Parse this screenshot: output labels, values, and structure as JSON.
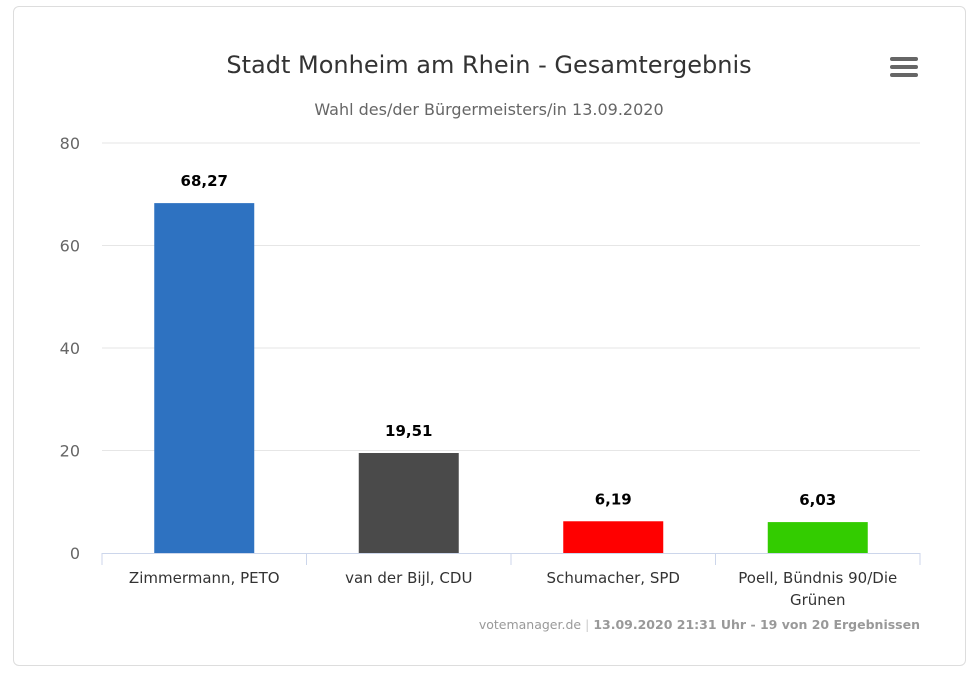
{
  "chart_data": {
    "type": "bar",
    "title": "Stadt Monheim am Rhein - Gesamtergebnis",
    "subtitle": "Wahl des/der Bürgermeisters/in 13.09.2020",
    "categories": [
      "Zimmermann, PETO",
      "van der Bijl, CDU",
      "Schumacher, SPD",
      "Poell, Bündnis 90/Die Grünen"
    ],
    "category_lines": [
      [
        "Zimmermann, PETO"
      ],
      [
        "van der Bijl, CDU"
      ],
      [
        "Schumacher, SPD"
      ],
      [
        "Poell, Bündnis 90/Die",
        "Grünen"
      ]
    ],
    "values": [
      68.27,
      19.51,
      6.19,
      6.03
    ],
    "data_labels": [
      "68,27",
      "19,51",
      "6,19",
      "6,03"
    ],
    "colors": [
      "#2e72c1",
      "#4a4a4a",
      "#ff0000",
      "#33cc00"
    ],
    "ylim": [
      0,
      80
    ],
    "yticks": [
      0,
      20,
      40,
      60,
      80
    ],
    "grid": true,
    "xlabel": "",
    "ylabel": ""
  },
  "credits": {
    "source": "votemanager.de",
    "separator": "|",
    "info": "13.09.2020 21:31 Uhr - 19 von 20 Ergebnissen"
  },
  "menu_icon": "hamburger-menu-icon"
}
